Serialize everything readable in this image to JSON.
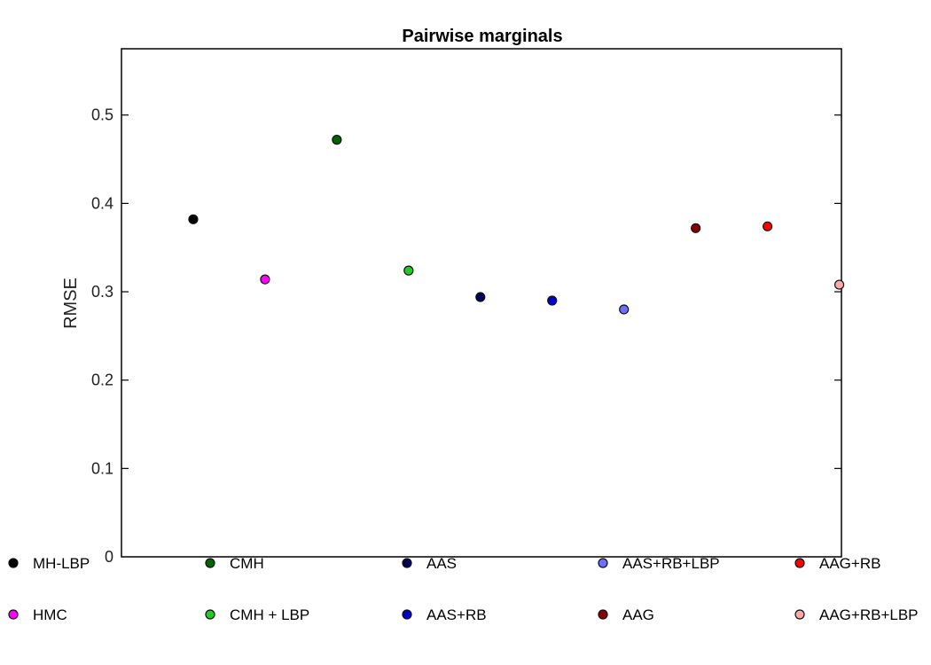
{
  "chart_data": {
    "type": "scatter",
    "title": "Pairwise marginals",
    "xlabel": "",
    "ylabel": "RMSE",
    "ylim": [
      0,
      0.575
    ],
    "yticks": [
      "0",
      "0.1",
      "0.2",
      "0.3",
      "0.4",
      "0.5"
    ],
    "grid": false,
    "legend_position": "bottom",
    "series": [
      {
        "name": "MH-LBP",
        "x": 1,
        "y": 0.382,
        "color": "#000000"
      },
      {
        "name": "HMC",
        "x": 2,
        "y": 0.314,
        "color": "#ff00ff"
      },
      {
        "name": "CMH",
        "x": 3,
        "y": 0.472,
        "color": "#006400"
      },
      {
        "name": "CMH + LBP",
        "x": 4,
        "y": 0.324,
        "color": "#22cc22"
      },
      {
        "name": "AAS",
        "x": 5,
        "y": 0.294,
        "color": "#00005a"
      },
      {
        "name": "AAS+RB",
        "x": 6,
        "y": 0.29,
        "color": "#0000cc"
      },
      {
        "name": "AAS+RB+LBP",
        "x": 7,
        "y": 0.28,
        "color": "#6f6fff"
      },
      {
        "name": "AAG",
        "x": 8,
        "y": 0.372,
        "color": "#8b0000"
      },
      {
        "name": "AAG+RB",
        "x": 9,
        "y": 0.374,
        "color": "#ff0000"
      },
      {
        "name": "AAG+RB+LBP",
        "x": 10,
        "y": 0.308,
        "color": "#ffaaaa"
      }
    ]
  }
}
